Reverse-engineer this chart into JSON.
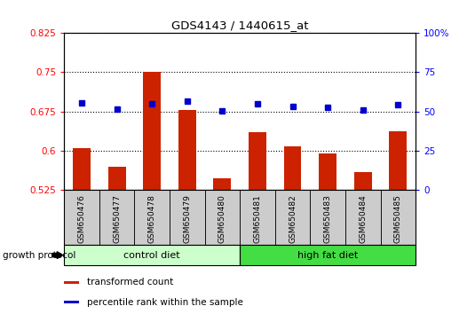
{
  "title": "GDS4143 / 1440615_at",
  "samples": [
    "GSM650476",
    "GSM650477",
    "GSM650478",
    "GSM650479",
    "GSM650480",
    "GSM650481",
    "GSM650482",
    "GSM650483",
    "GSM650484",
    "GSM650485"
  ],
  "bar_values": [
    0.605,
    0.57,
    0.75,
    0.678,
    0.548,
    0.635,
    0.608,
    0.595,
    0.56,
    0.638
  ],
  "dot_values_left": [
    0.692,
    0.68,
    0.69,
    0.695,
    0.676,
    0.69,
    0.685,
    0.683,
    0.677,
    0.688
  ],
  "bar_bottom": 0.525,
  "ylim_left": [
    0.525,
    0.825
  ],
  "ylim_right": [
    0,
    100
  ],
  "yticks_left": [
    0.525,
    0.6,
    0.675,
    0.75,
    0.825
  ],
  "yticks_right": [
    0,
    25,
    50,
    75,
    100
  ],
  "ytick_labels_left": [
    "0.525",
    "0.6",
    "0.675",
    "0.75",
    "0.825"
  ],
  "ytick_labels_right": [
    "0",
    "25",
    "50",
    "75",
    "100%"
  ],
  "groups": [
    {
      "label": "control diet",
      "start": 0,
      "end": 5,
      "color": "#ccffcc"
    },
    {
      "label": "high fat diet",
      "start": 5,
      "end": 10,
      "color": "#44dd44"
    }
  ],
  "group_label": "growth protocol",
  "bar_color": "#cc2200",
  "dot_color": "#0000cc",
  "legend_items": [
    {
      "color": "#cc2200",
      "label": "transformed count"
    },
    {
      "color": "#0000cc",
      "label": "percentile rank within the sample"
    }
  ],
  "tick_box_color": "#cccccc",
  "fig_bg": "#ffffff"
}
